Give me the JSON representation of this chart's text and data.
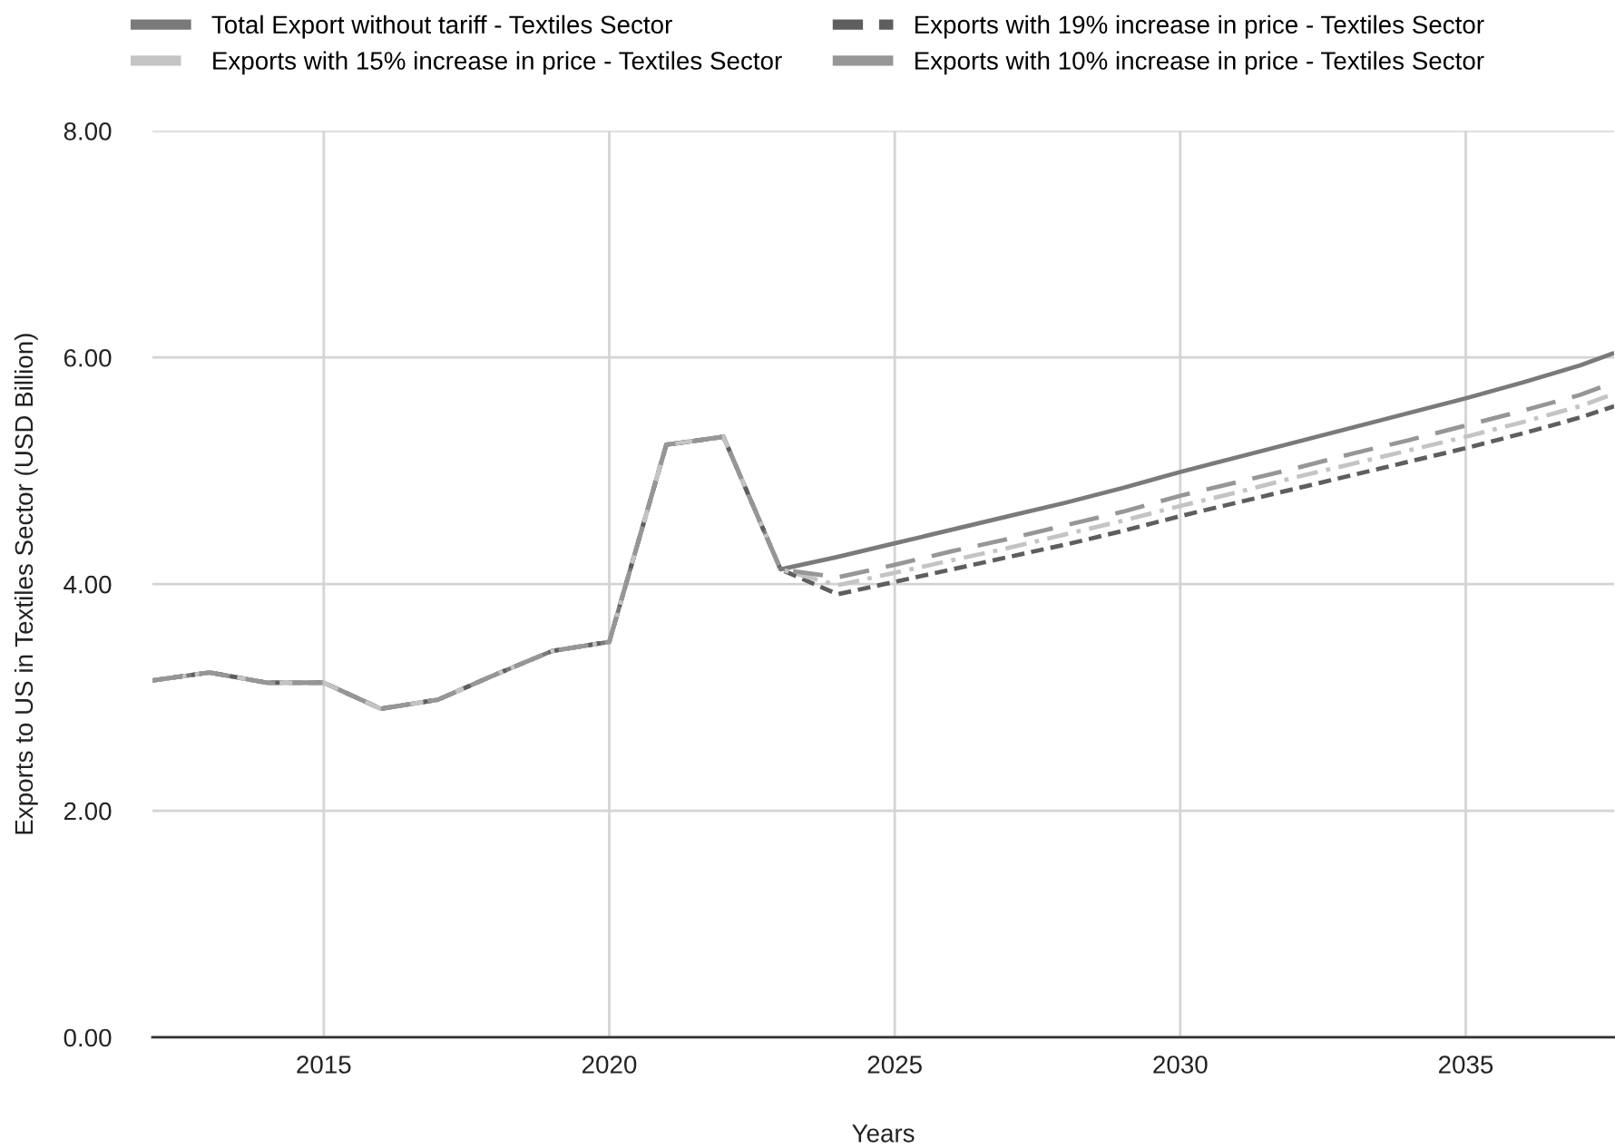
{
  "chart_data": {
    "type": "line",
    "xlabel": "Years",
    "ylabel": "Exports to US in Textiles Sector (USD Billion)",
    "x": [
      2012,
      2013,
      2014,
      2015,
      2016,
      2017,
      2018,
      2019,
      2020,
      2021,
      2022,
      2023,
      2024,
      2025,
      2026,
      2027,
      2028,
      2029,
      2030,
      2031,
      2032,
      2033,
      2034,
      2035,
      2036,
      2037,
      2037.6
    ],
    "series": [
      {
        "name": "Total Export without tariff - Textiles Sector",
        "color": "#7a7a7a",
        "line_style": "solid",
        "values": [
          3.15,
          3.22,
          3.13,
          3.13,
          2.9,
          2.98,
          3.2,
          3.41,
          3.49,
          5.23,
          5.3,
          4.13,
          4.24,
          4.36,
          4.48,
          4.6,
          4.72,
          4.85,
          4.99,
          5.12,
          5.25,
          5.38,
          5.51,
          5.64,
          5.78,
          5.93,
          6.04
        ]
      },
      {
        "name": "Exports with 19% increase in price - Textiles Sector",
        "color": "#5e5e5e",
        "line_style": "dashed",
        "values": [
          3.15,
          3.22,
          3.13,
          3.13,
          2.9,
          2.98,
          3.2,
          3.41,
          3.49,
          5.23,
          5.3,
          4.13,
          3.91,
          4.02,
          4.13,
          4.24,
          4.35,
          4.47,
          4.6,
          4.72,
          4.84,
          4.96,
          5.08,
          5.2,
          5.33,
          5.47,
          5.57
        ]
      },
      {
        "name": "Exports with 15% increase in price - Textiles Sector",
        "color": "#c4c4c4",
        "line_style": "dashdot",
        "values": [
          3.15,
          3.22,
          3.13,
          3.13,
          2.9,
          2.98,
          3.2,
          3.41,
          3.49,
          5.23,
          5.3,
          4.13,
          3.99,
          4.1,
          4.21,
          4.32,
          4.44,
          4.56,
          4.69,
          4.81,
          4.94,
          5.06,
          5.18,
          5.3,
          5.43,
          5.57,
          5.68
        ]
      },
      {
        "name": "Exports with 10% increase in price - Textiles Sector",
        "color": "#969696",
        "line_style": "longdash",
        "values": [
          3.15,
          3.22,
          3.13,
          3.13,
          2.9,
          2.98,
          3.2,
          3.41,
          3.49,
          5.23,
          5.3,
          4.13,
          4.06,
          4.17,
          4.29,
          4.4,
          4.52,
          4.64,
          4.78,
          4.9,
          5.02,
          5.15,
          5.27,
          5.4,
          5.53,
          5.67,
          5.78
        ]
      }
    ],
    "xlim": [
      2012,
      2037.6
    ],
    "xticks": [
      2015,
      2020,
      2025,
      2030,
      2035
    ],
    "ylim": [
      0,
      8
    ],
    "yticks": [
      {
        "value": 0,
        "label": "0.00"
      },
      {
        "value": 2,
        "label": "2.00"
      },
      {
        "value": 4,
        "label": "4.00"
      },
      {
        "value": 6,
        "label": "6.00"
      },
      {
        "value": 8,
        "label": "8.00"
      }
    ],
    "grid": true,
    "legend": "top",
    "marker": "none"
  }
}
